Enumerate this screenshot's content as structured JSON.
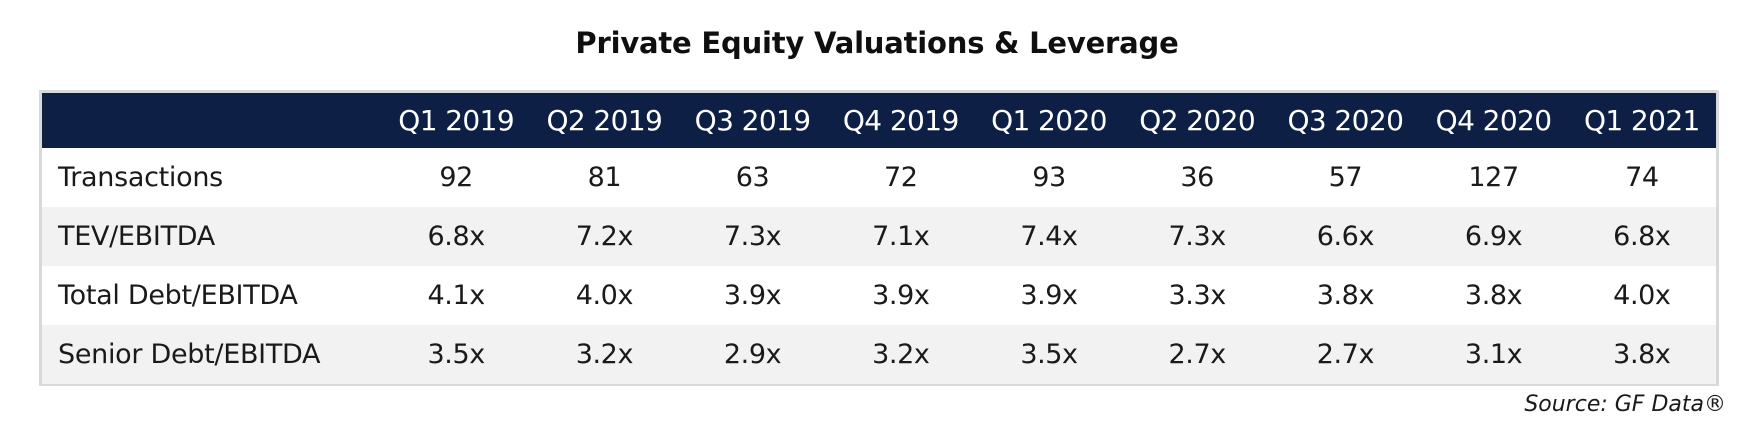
{
  "chart_data": {
    "type": "table",
    "title": "Private Equity Valuations & Leverage",
    "columns": [
      "Q1 2019",
      "Q2 2019",
      "Q3 2019",
      "Q4 2019",
      "Q1 2020",
      "Q2 2020",
      "Q3 2020",
      "Q4 2020",
      "Q1 2021"
    ],
    "rows": [
      {
        "label": "Transactions",
        "values": [
          "92",
          "81",
          "63",
          "72",
          "93",
          "36",
          "57",
          "127",
          "74"
        ]
      },
      {
        "label": "TEV/EBITDA",
        "values": [
          "6.8x",
          "7.2x",
          "7.3x",
          "7.1x",
          "7.4x",
          "7.3x",
          "6.6x",
          "6.9x",
          "6.8x"
        ]
      },
      {
        "label": "Total Debt/EBITDA",
        "values": [
          "4.1x",
          "4.0x",
          "3.9x",
          "3.9x",
          "3.9x",
          "3.3x",
          "3.8x",
          "3.8x",
          "4.0x"
        ]
      },
      {
        "label": "Senior Debt/EBITDA",
        "values": [
          "3.5x",
          "3.2x",
          "2.9x",
          "3.2x",
          "3.5x",
          "2.7x",
          "2.7x",
          "3.1x",
          "3.8x"
        ]
      }
    ],
    "header_color": "#0d1f44",
    "alt_row_color": "#f2f2f2",
    "source": "Source: GF Data®"
  }
}
